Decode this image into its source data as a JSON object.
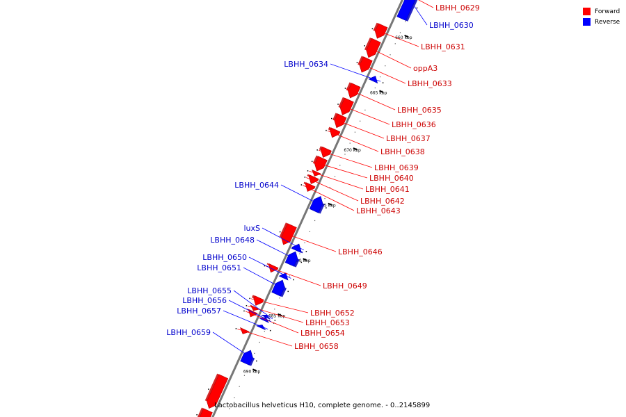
{
  "legend": {
    "items": [
      {
        "label": "Forward",
        "color": "#ff0000"
      },
      {
        "label": "Reverse",
        "color": "#0000ff"
      }
    ]
  },
  "caption": "Lactobacillus helveticus H10, complete genome. - 0..2145899",
  "colors": {
    "forward": "#ff0000",
    "reverse": "#0000ff",
    "backbone": "#888888"
  },
  "axis_ticks": [
    {
      "label": "660 kbp",
      "t": 0.08
    },
    {
      "label": "665 kbp",
      "t": 0.21
    },
    {
      "label": "670 kbp",
      "t": 0.345
    },
    {
      "label": "675 kbp",
      "t": 0.475
    },
    {
      "label": "680 kbp",
      "t": 0.605
    },
    {
      "label": "685 kbp",
      "t": 0.735
    },
    {
      "label": "690 kbp",
      "t": 0.865
    },
    {
      "label": "695 kbp",
      "t": 0.995
    }
  ],
  "genes": [
    {
      "name": "LBHH_0629",
      "strand": "forward",
      "t0": -0.02,
      "t1": 0.01
    },
    {
      "name": "LBHH_0630",
      "strand": "reverse",
      "t0": -0.02,
      "t1": 0.05
    },
    {
      "name": "LBHH_0631",
      "strand": "forward",
      "t0": 0.08,
      "t1": 0.11
    },
    {
      "name": "LBHH_0634",
      "strand": "reverse",
      "t0": 0.185,
      "t1": 0.197
    },
    {
      "name": "oppA3",
      "strand": "forward",
      "t0": 0.115,
      "t1": 0.155
    },
    {
      "name": "LBHH_0633",
      "strand": "forward",
      "t0": 0.158,
      "t1": 0.19
    },
    {
      "name": "LBHH_0635",
      "strand": "forward",
      "t0": 0.22,
      "t1": 0.25
    },
    {
      "name": "LBHH_0636",
      "strand": "forward",
      "t0": 0.255,
      "t1": 0.29
    },
    {
      "name": "LBHH_0637",
      "strand": "forward",
      "t0": 0.292,
      "t1": 0.32
    },
    {
      "name": "LBHH_0638",
      "strand": "forward",
      "t0": 0.325,
      "t1": 0.343
    },
    {
      "name": "LBHH_0639",
      "strand": "forward",
      "t0": 0.37,
      "t1": 0.39
    },
    {
      "name": "LBHH_0640",
      "strand": "forward",
      "t0": 0.392,
      "t1": 0.422
    },
    {
      "name": "LBHH_0641",
      "strand": "forward",
      "t0": 0.424,
      "t1": 0.434
    },
    {
      "name": "LBHH_0642",
      "strand": "forward",
      "t0": 0.436,
      "t1": 0.452
    },
    {
      "name": "LBHH_0643",
      "strand": "forward",
      "t0": 0.454,
      "t1": 0.47
    },
    {
      "name": "LBHH_0644",
      "strand": "reverse",
      "t0": 0.468,
      "t1": 0.502
    },
    {
      "name": "LBHH_0646",
      "strand": "forward",
      "t0": 0.55,
      "t1": 0.595
    },
    {
      "name": "luxS",
      "strand": "reverse",
      "t0": 0.58,
      "t1": 0.595
    },
    {
      "name": "LBHH_0648",
      "strand": "reverse",
      "t0": 0.598,
      "t1": 0.628
    },
    {
      "name": "LBHH_0649",
      "strand": "forward",
      "t0": 0.645,
      "t1": 0.66
    },
    {
      "name": "LBHH_0650",
      "strand": "reverse",
      "t0": 0.648,
      "t1": 0.66
    },
    {
      "name": "LBHH_0651",
      "strand": "reverse",
      "t0": 0.665,
      "t1": 0.698
    },
    {
      "name": "LBHH_0652",
      "strand": "forward",
      "t0": 0.72,
      "t1": 0.738
    },
    {
      "name": "LBHH_0653",
      "strand": "forward",
      "t0": 0.742,
      "t1": 0.75
    },
    {
      "name": "LBHH_0654",
      "strand": "forward",
      "t0": 0.752,
      "t1": 0.765
    },
    {
      "name": "LBHH_0655",
      "strand": "reverse",
      "t0": 0.747,
      "t1": 0.752
    },
    {
      "name": "LBHH_0656",
      "strand": "reverse",
      "t0": 0.752,
      "t1": 0.76
    },
    {
      "name": "LBHH_0657",
      "strand": "reverse",
      "t0": 0.77,
      "t1": 0.777
    },
    {
      "name": "LBHH_0658",
      "strand": "forward",
      "t0": 0.795,
      "t1": 0.805
    },
    {
      "name": "LBHH_0659",
      "strand": "reverse",
      "t0": 0.83,
      "t1": 0.86
    },
    {
      "name": "",
      "strand": "forward",
      "t0": 0.905,
      "t1": 0.98
    },
    {
      "name": "",
      "strand": "forward",
      "t0": 0.985,
      "t1": 1.02
    }
  ]
}
